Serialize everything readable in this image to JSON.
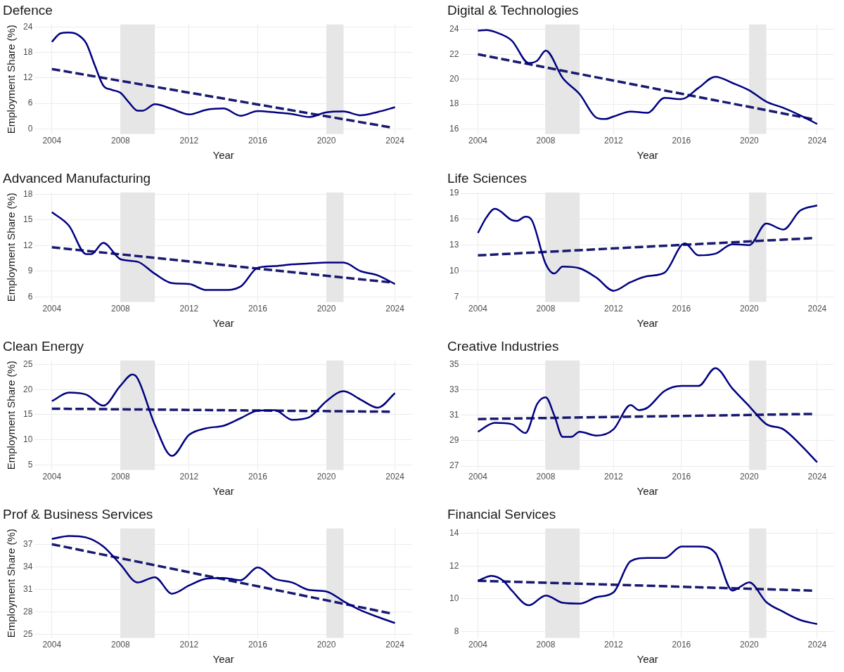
{
  "chart_data": [
    {
      "type": "line",
      "title": "Defence",
      "xlabel": "Year",
      "ylabel": "Employment Share (%)",
      "xlim": [
        2003,
        2025
      ],
      "xticks": [
        2004,
        2008,
        2012,
        2016,
        2020,
        2024
      ],
      "ylim": [
        -1.2,
        24.6
      ],
      "yticks": [
        0,
        6,
        12,
        18,
        24
      ],
      "grid": true,
      "legend": false,
      "bands": [
        {
          "axis": "x",
          "from": 2008,
          "to": 2010,
          "color": "#e6e6e6"
        },
        {
          "axis": "x",
          "from": 2020,
          "to": 2021,
          "color": "#e6e6e6"
        }
      ],
      "series": [
        {
          "type": "line",
          "color": "#000080",
          "line_style": "solid",
          "x": [
            2004,
            2004.5,
            2005,
            2005.5,
            2006,
            2006.5,
            2007,
            2007.5,
            2008,
            2008.5,
            2009,
            2009.3,
            2010,
            2011,
            2012,
            2013,
            2014,
            2015,
            2016,
            2017,
            2018,
            2019,
            2020,
            2021,
            2022,
            2023,
            2024
          ],
          "values": [
            20.5,
            22.5,
            22.7,
            22.2,
            20.2,
            15,
            10.2,
            9.2,
            8.5,
            6.2,
            4.3,
            4.3,
            5.8,
            4.7,
            3.4,
            4.5,
            4.8,
            3.1,
            4.2,
            3.9,
            3.5,
            2.8,
            3.9,
            4.1,
            3.2,
            4.0,
            5.1
          ]
        },
        {
          "type": "line",
          "color": "#191970",
          "line_style": "dashed",
          "x": [
            2004,
            2023.7
          ],
          "values": [
            14.1,
            0.4
          ]
        }
      ]
    },
    {
      "type": "line",
      "title": "Digital & Technologies",
      "xlabel": "Year",
      "xlim": [
        2003,
        2025
      ],
      "xticks": [
        2004,
        2008,
        2012,
        2016,
        2020,
        2024
      ],
      "ylim": [
        15.6,
        24.4
      ],
      "yticks": [
        16,
        18,
        20,
        22,
        24
      ],
      "grid": true,
      "legend": false,
      "bands": [
        {
          "axis": "x",
          "from": 2008,
          "to": 2010,
          "color": "#e6e6e6"
        },
        {
          "axis": "x",
          "from": 2020,
          "to": 2021,
          "color": "#e6e6e6"
        }
      ],
      "series": [
        {
          "type": "line",
          "color": "#000080",
          "line_style": "solid",
          "x": [
            2004,
            2004.5,
            2005,
            2006,
            2007,
            2007.5,
            2008,
            2009,
            2010,
            2011,
            2011.5,
            2012,
            2013,
            2014,
            2015,
            2016,
            2017,
            2018,
            2019,
            2020,
            2021,
            2022,
            2023,
            2024
          ],
          "values": [
            23.9,
            23.95,
            23.8,
            23.1,
            21.3,
            21.5,
            22.3,
            20.1,
            18.8,
            16.9,
            16.8,
            17.0,
            17.4,
            17.3,
            18.5,
            18.4,
            19.3,
            20.2,
            19.7,
            19.1,
            18.2,
            17.7,
            17.1,
            16.4
          ]
        },
        {
          "type": "line",
          "color": "#191970",
          "line_style": "dashed",
          "x": [
            2004,
            2023.7
          ],
          "values": [
            22.0,
            16.8
          ]
        }
      ]
    },
    {
      "type": "line",
      "title": "Advanced Manufacturing",
      "xlabel": "Year",
      "ylabel": "Employment Share (%)",
      "xlim": [
        2003,
        2025
      ],
      "xticks": [
        2004,
        2008,
        2012,
        2016,
        2020,
        2024
      ],
      "ylim": [
        5.4,
        18.2
      ],
      "yticks": [
        6,
        9,
        12,
        15,
        18
      ],
      "grid": true,
      "legend": false,
      "bands": [
        {
          "axis": "x",
          "from": 2008,
          "to": 2010,
          "color": "#e6e6e6"
        },
        {
          "axis": "x",
          "from": 2020,
          "to": 2021,
          "color": "#e6e6e6"
        }
      ],
      "series": [
        {
          "type": "line",
          "color": "#000080",
          "line_style": "solid",
          "x": [
            2004,
            2005,
            2006,
            2006.3,
            2007,
            2008,
            2009,
            2010,
            2011,
            2012,
            2013,
            2014,
            2015,
            2016,
            2017,
            2018,
            2019,
            2020,
            2021,
            2022,
            2023,
            2024
          ],
          "values": [
            15.9,
            14.3,
            11.0,
            11.0,
            12.3,
            10.4,
            10.1,
            8.7,
            7.6,
            7.5,
            6.8,
            6.8,
            7.2,
            9.4,
            9.6,
            9.8,
            9.9,
            10.0,
            10.0,
            9.0,
            8.5,
            7.5
          ]
        },
        {
          "type": "line",
          "color": "#191970",
          "line_style": "dashed",
          "x": [
            2004,
            2023.7
          ],
          "values": [
            11.8,
            7.7
          ]
        }
      ]
    },
    {
      "type": "line",
      "title": "Life Sciences",
      "xlabel": "Year",
      "xlim": [
        2003,
        2025
      ],
      "xticks": [
        2004,
        2008,
        2012,
        2016,
        2020,
        2024
      ],
      "ylim": [
        6.4,
        19.1
      ],
      "yticks": [
        7,
        10,
        13,
        16,
        19
      ],
      "grid": true,
      "legend": false,
      "bands": [
        {
          "axis": "x",
          "from": 2008,
          "to": 2010,
          "color": "#e6e6e6"
        },
        {
          "axis": "x",
          "from": 2020,
          "to": 2021,
          "color": "#e6e6e6"
        }
      ],
      "series": [
        {
          "type": "line",
          "color": "#000080",
          "line_style": "solid",
          "x": [
            2004,
            2004.5,
            2005,
            2006,
            2006.3,
            2006.8,
            2007.2,
            2008,
            2008.5,
            2009,
            2010,
            2011,
            2012,
            2013,
            2014,
            2015,
            2016,
            2016.2,
            2017,
            2018,
            2019,
            2020,
            2021,
            2022,
            2023,
            2024
          ],
          "values": [
            14.4,
            16.2,
            17.2,
            15.9,
            15.8,
            16.3,
            15.8,
            10.8,
            9.7,
            10.5,
            10.3,
            9.2,
            7.7,
            8.7,
            9.4,
            9.8,
            13.0,
            13.2,
            11.8,
            12.0,
            13.1,
            13.0,
            15.5,
            14.8,
            17.0,
            17.6
          ]
        },
        {
          "type": "line",
          "color": "#191970",
          "line_style": "dashed",
          "x": [
            2004,
            2023.7
          ],
          "values": [
            11.8,
            13.8
          ]
        }
      ]
    },
    {
      "type": "line",
      "title": "Clean Energy",
      "xlabel": "Year",
      "ylabel": "Employment Share (%)",
      "xlim": [
        2003,
        2025
      ],
      "xticks": [
        2004,
        2008,
        2012,
        2016,
        2020,
        2024
      ],
      "ylim": [
        4,
        25.8
      ],
      "yticks": [
        5,
        10,
        15,
        20,
        25
      ],
      "grid": true,
      "legend": false,
      "bands": [
        {
          "axis": "x",
          "from": 2008,
          "to": 2010,
          "color": "#e6e6e6"
        },
        {
          "axis": "x",
          "from": 2020,
          "to": 2021,
          "color": "#e6e6e6"
        }
      ],
      "series": [
        {
          "type": "line",
          "color": "#000080",
          "line_style": "solid",
          "x": [
            2004,
            2005,
            2006,
            2007,
            2008,
            2008.7,
            2009,
            2010,
            2011,
            2012,
            2013,
            2014,
            2015,
            2016,
            2017,
            2018,
            2019,
            2020,
            2021,
            2022,
            2023,
            2024
          ],
          "values": [
            17.7,
            19.4,
            19.0,
            16.8,
            20.8,
            23.0,
            22.2,
            13.0,
            6.8,
            11.0,
            12.3,
            12.8,
            14.3,
            15.8,
            15.9,
            14.0,
            14.5,
            17.7,
            19.7,
            18.0,
            16.4,
            19.3
          ]
        },
        {
          "type": "line",
          "color": "#191970",
          "line_style": "dashed",
          "x": [
            2004,
            2023.7
          ],
          "values": [
            16.2,
            15.6
          ]
        }
      ]
    },
    {
      "type": "line",
      "title": "Creative Industries",
      "xlabel": "Year",
      "xlim": [
        2003,
        2025
      ],
      "xticks": [
        2004,
        2008,
        2012,
        2016,
        2020,
        2024
      ],
      "ylim": [
        26.7,
        35.3
      ],
      "yticks": [
        27,
        29,
        31,
        33,
        35
      ],
      "grid": true,
      "legend": false,
      "bands": [
        {
          "axis": "x",
          "from": 2008,
          "to": 2010,
          "color": "#e6e6e6"
        },
        {
          "axis": "x",
          "from": 2020,
          "to": 2021,
          "color": "#e6e6e6"
        }
      ],
      "series": [
        {
          "type": "line",
          "color": "#000080",
          "line_style": "solid",
          "x": [
            2004,
            2005,
            2006,
            2006.8,
            2007.5,
            2008,
            2008.5,
            2009,
            2009.5,
            2010,
            2011,
            2012,
            2013,
            2013.5,
            2014,
            2015,
            2016,
            2017,
            2018,
            2019,
            2020,
            2021,
            2022,
            2023,
            2024
          ],
          "values": [
            29.7,
            30.4,
            30.3,
            29.6,
            31.9,
            32.4,
            31.0,
            29.3,
            29.3,
            29.7,
            29.4,
            29.9,
            31.8,
            31.4,
            31.6,
            32.9,
            33.3,
            33.3,
            34.7,
            33.1,
            31.7,
            30.3,
            29.9,
            28.7,
            27.3
          ]
        },
        {
          "type": "line",
          "color": "#191970",
          "line_style": "dashed",
          "x": [
            2004,
            2023.7
          ],
          "values": [
            30.7,
            31.1
          ]
        }
      ]
    },
    {
      "type": "line",
      "title": "Prof & Business Services",
      "xlabel": "Year",
      "ylabel": "Employment Share (%)",
      "xlim": [
        2003,
        2025
      ],
      "xticks": [
        2004,
        2008,
        2012,
        2016,
        2020,
        2024
      ],
      "ylim": [
        24.5,
        39.1
      ],
      "yticks": [
        25,
        28,
        31,
        34,
        37
      ],
      "grid": true,
      "legend": false,
      "bands": [
        {
          "axis": "x",
          "from": 2008,
          "to": 2010,
          "color": "#e6e6e6"
        },
        {
          "axis": "x",
          "from": 2020,
          "to": 2021,
          "color": "#e6e6e6"
        }
      ],
      "series": [
        {
          "type": "line",
          "color": "#000080",
          "line_style": "solid",
          "x": [
            2004,
            2005,
            2006,
            2007,
            2008,
            2009,
            2010,
            2011,
            2012,
            2013,
            2014,
            2015,
            2016,
            2017,
            2018,
            2019,
            2020,
            2021,
            2022,
            2023,
            2024
          ],
          "values": [
            37.7,
            38.1,
            37.9,
            36.7,
            34.3,
            31.9,
            32.6,
            30.4,
            31.5,
            32.4,
            32.5,
            32.2,
            33.9,
            32.4,
            31.9,
            30.9,
            30.7,
            29.4,
            28.2,
            27.3,
            26.5
          ]
        },
        {
          "type": "line",
          "color": "#191970",
          "line_style": "dashed",
          "x": [
            2004,
            2023.7
          ],
          "values": [
            37.0,
            27.8
          ]
        }
      ]
    },
    {
      "type": "line",
      "title": "Financial Services",
      "xlabel": "Year",
      "xlim": [
        2003,
        2025
      ],
      "xticks": [
        2004,
        2008,
        2012,
        2016,
        2020,
        2024
      ],
      "ylim": [
        7.6,
        14.3
      ],
      "yticks": [
        8,
        10,
        12,
        14
      ],
      "grid": true,
      "legend": false,
      "bands": [
        {
          "axis": "x",
          "from": 2008,
          "to": 2010,
          "color": "#e6e6e6"
        },
        {
          "axis": "x",
          "from": 2020,
          "to": 2021,
          "color": "#e6e6e6"
        }
      ],
      "series": [
        {
          "type": "line",
          "color": "#000080",
          "line_style": "solid",
          "x": [
            2004,
            2004.8,
            2005.5,
            2006,
            2007,
            2008,
            2009,
            2010,
            2011,
            2012,
            2013,
            2014,
            2015,
            2016,
            2017,
            2018,
            2019,
            2020,
            2021,
            2022,
            2023,
            2024
          ],
          "values": [
            11.1,
            11.4,
            11.1,
            10.5,
            9.6,
            10.2,
            9.75,
            9.7,
            10.1,
            10.4,
            12.3,
            12.5,
            12.5,
            13.2,
            13.2,
            12.8,
            10.5,
            11.0,
            9.8,
            9.2,
            8.7,
            8.45
          ]
        },
        {
          "type": "line",
          "color": "#191970",
          "line_style": "dashed",
          "x": [
            2004,
            2023.7
          ],
          "values": [
            11.1,
            10.5
          ]
        }
      ]
    }
  ]
}
